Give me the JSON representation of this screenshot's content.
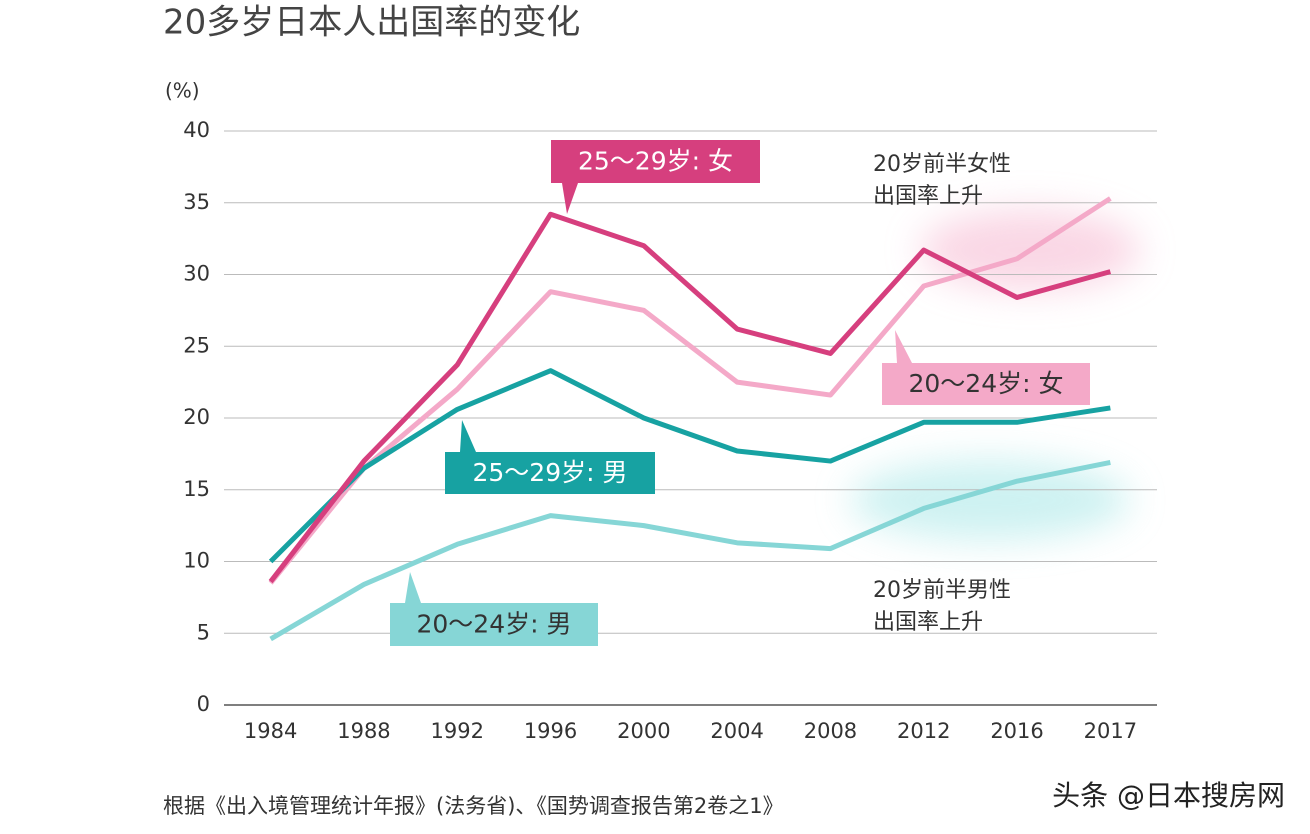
{
  "chart_data": {
    "type": "line",
    "title": "20多岁日本人出国率的变化",
    "y_label": "(%)",
    "categories": [
      "1984",
      "1988",
      "1992",
      "1996",
      "2000",
      "2004",
      "2008",
      "2012",
      "2016",
      "2017"
    ],
    "series": [
      {
        "name": "25～29岁: 女",
        "color": "#d63f7e",
        "values": [
          8.6,
          17,
          23.7,
          34.2,
          32,
          26.2,
          24.5,
          31.7,
          28.4,
          30.2
        ]
      },
      {
        "name": "20～24岁: 女",
        "color": "#f4a9c8",
        "values": [
          8.5,
          16.5,
          22,
          28.8,
          27.5,
          22.5,
          21.6,
          29.2,
          31.1,
          35.3
        ]
      },
      {
        "name": "25～29岁: 男",
        "color": "#17a2a2",
        "values": [
          10,
          16.5,
          20.6,
          23.3,
          20,
          17.7,
          17,
          19.7,
          19.7,
          20.7
        ]
      },
      {
        "name": "20～24岁: 男",
        "color": "#86d6d6",
        "values": [
          4.6,
          8.4,
          11.2,
          13.2,
          12.5,
          11.3,
          10.9,
          13.7,
          15.6,
          16.9
        ]
      }
    ],
    "ylim": [
      0,
      40
    ],
    "yticks": [
      0,
      5,
      10,
      15,
      20,
      25,
      30,
      35,
      40
    ],
    "grid": true,
    "annotations": [
      [
        "20岁前半女性",
        "出国率上升"
      ],
      [
        "20岁前半男性",
        "出国率上升"
      ]
    ],
    "source": "根据《出入境管理统计年报》(法务省)、《国势调查报告第2卷之1》",
    "watermark": "头条 @日本搜房网"
  }
}
